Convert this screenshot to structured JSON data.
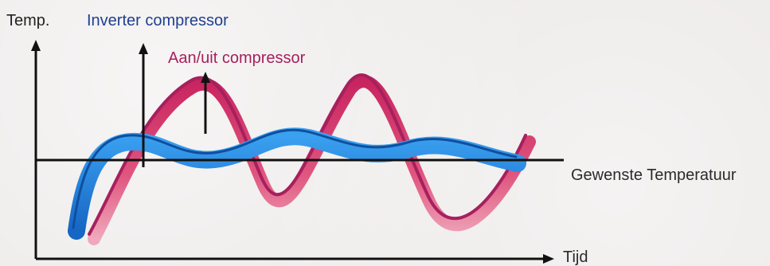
{
  "labels": {
    "y_axis": "Temp.",
    "x_axis": "Tijd",
    "inverter": "Inverter compressor",
    "on_off": "Aan/uit compressor",
    "setpoint": "Gewenste Temperatuur"
  },
  "colors": {
    "inverter": "#1f3f8f",
    "inverter_ribbon": "#1f7fd6",
    "on_off": "#a6205e",
    "on_off_ribbon": "#d6306f",
    "axis": "#111111"
  }
}
